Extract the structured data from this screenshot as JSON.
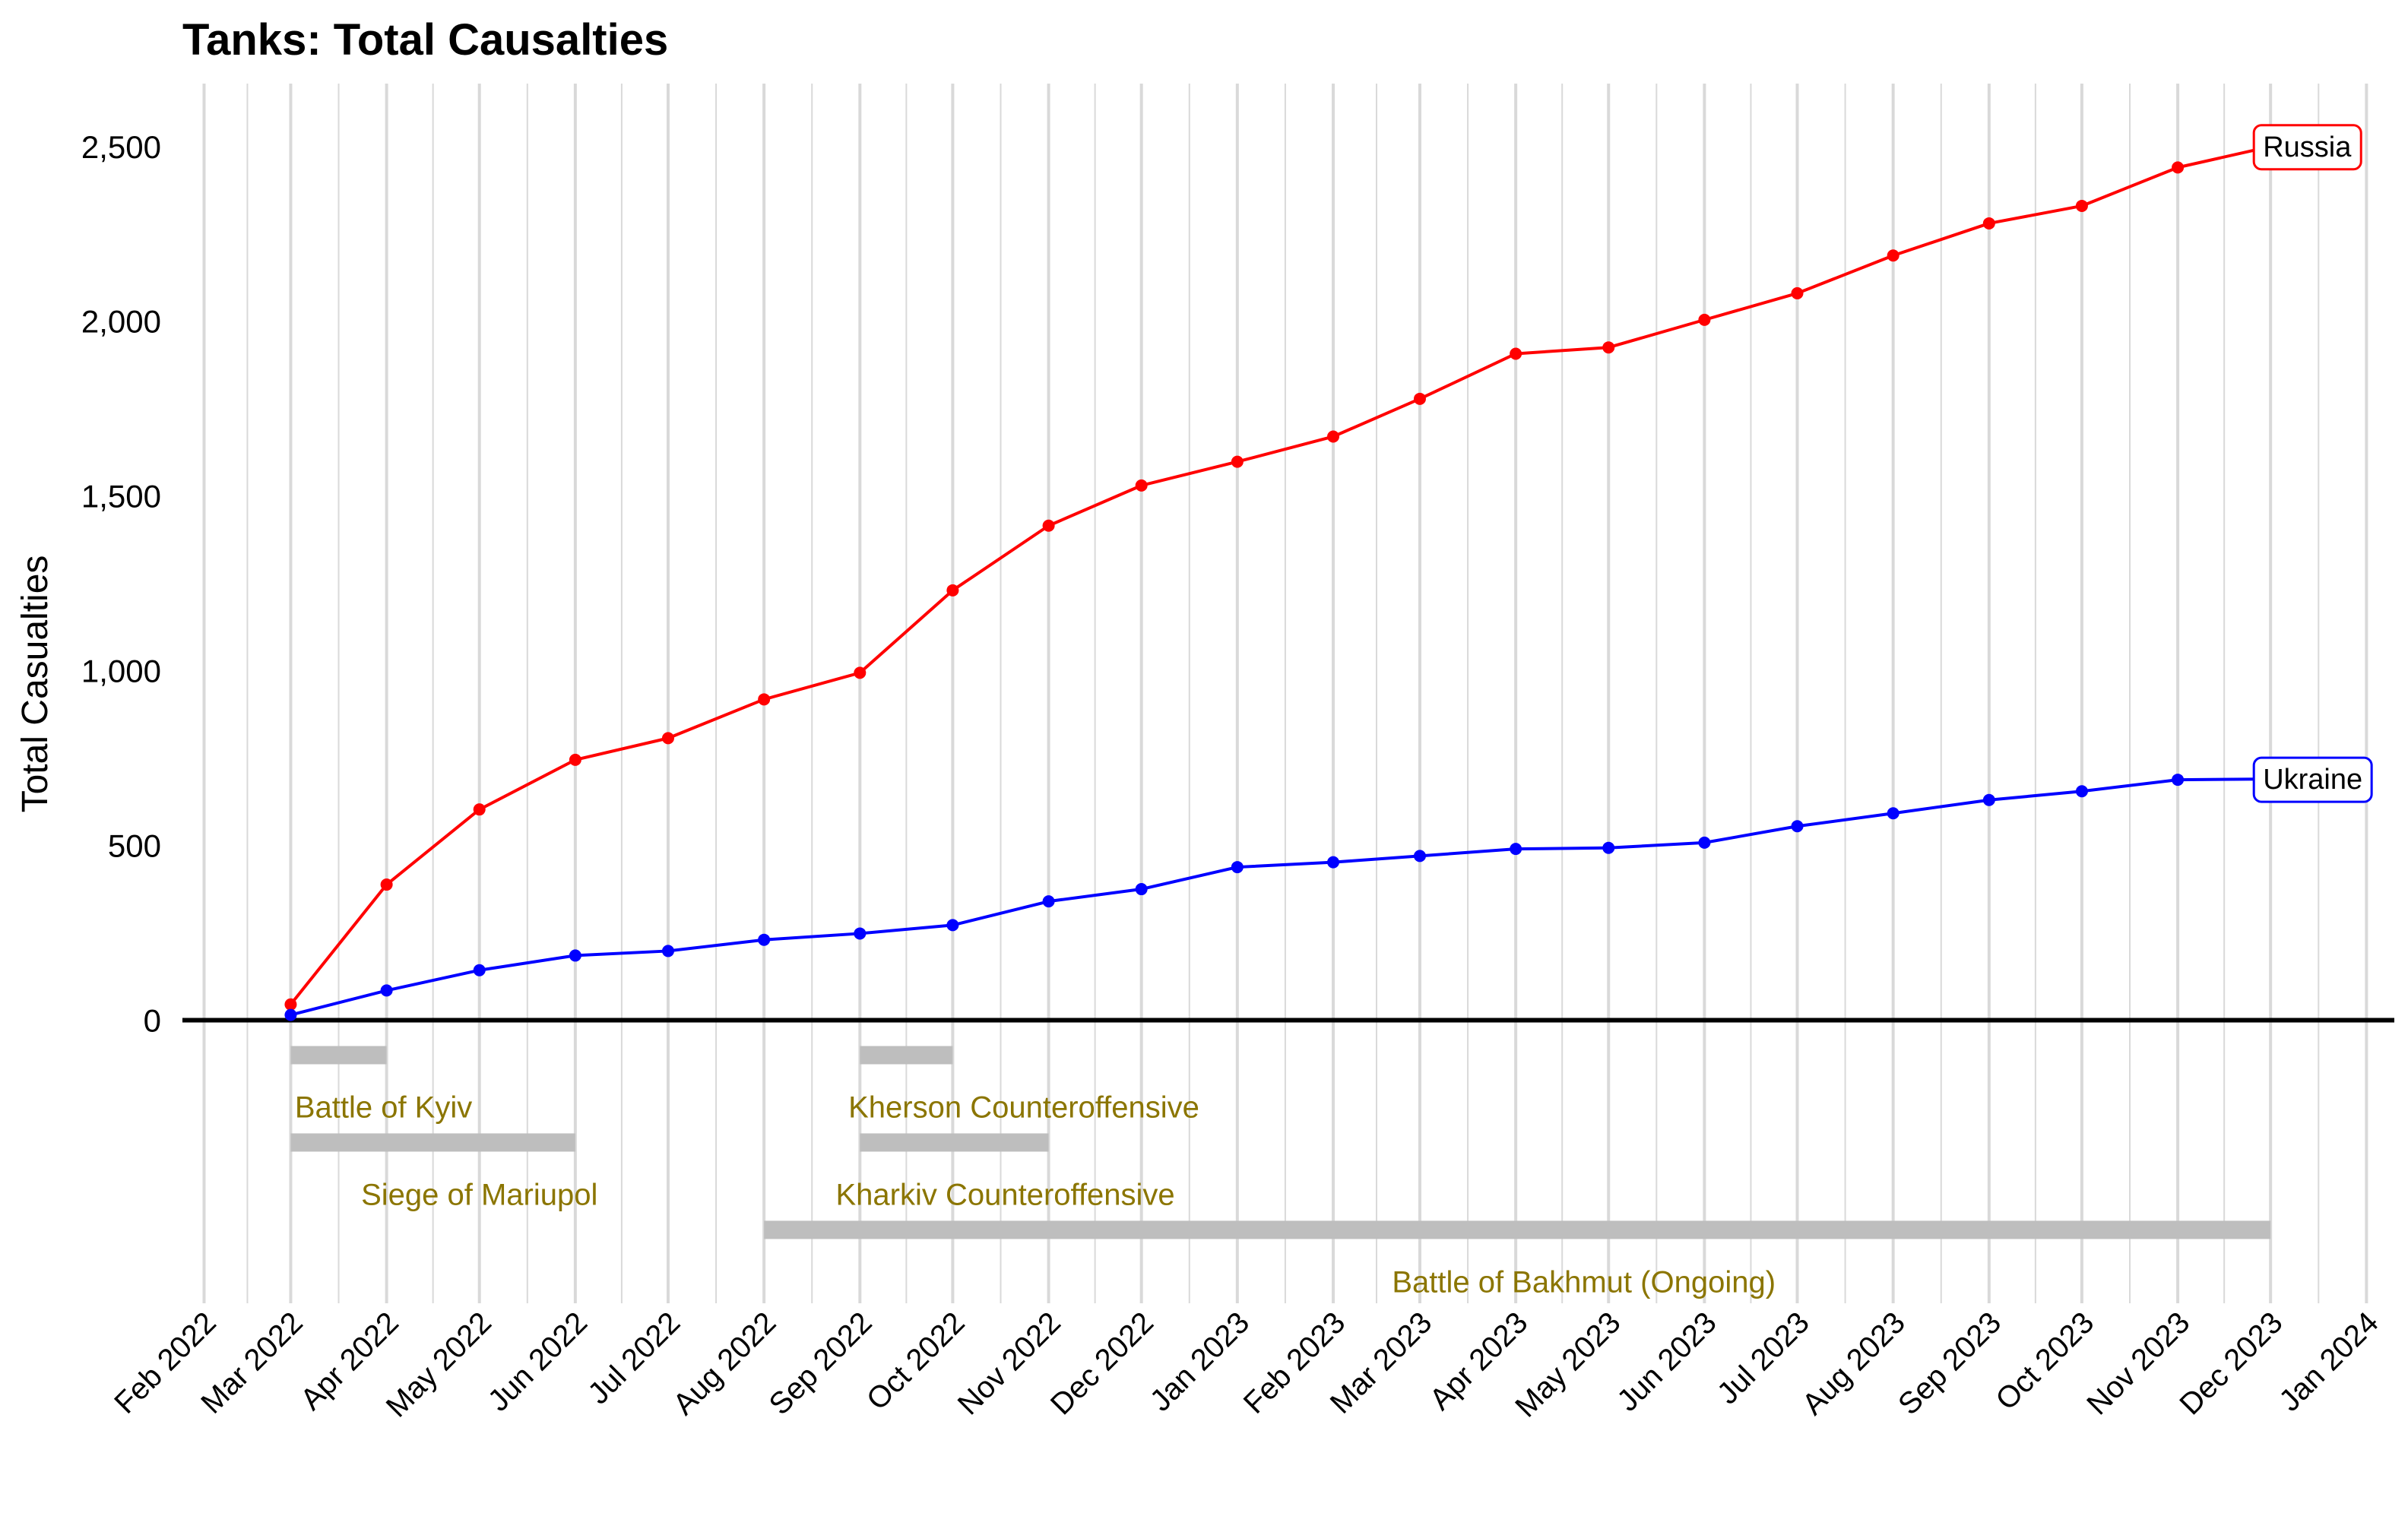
{
  "chart_data": {
    "type": "line",
    "title": "Tanks: Total Causalties",
    "xlabel": "",
    "ylabel": "Total Casualties",
    "x_ticks": [
      "Feb 2022",
      "Mar 2022",
      "Apr 2022",
      "May 2022",
      "Jun 2022",
      "Jul 2022",
      "Aug 2022",
      "Sep 2022",
      "Oct 2022",
      "Nov 2022",
      "Dec 2022",
      "Jan 2023",
      "Feb 2023",
      "Mar 2023",
      "Apr 2023",
      "May 2023",
      "Jun 2023",
      "Jul 2023",
      "Aug 2023",
      "Sep 2023",
      "Oct 2023",
      "Nov 2023",
      "Dec 2023",
      "Jan 2024"
    ],
    "y_ticks": [
      0,
      500,
      1000,
      1500,
      2000,
      2500
    ],
    "y_tick_labels": [
      "0",
      "500",
      "1,000",
      "1,500",
      "2,000",
      "2,500"
    ],
    "xlim": [
      "2022-01-25",
      "2024-01-10"
    ],
    "ylim": [
      -810,
      2680
    ],
    "grid": "vertical",
    "x": [
      "2022-03-01",
      "2022-04-01",
      "2022-05-01",
      "2022-06-01",
      "2022-07-01",
      "2022-08-01",
      "2022-09-01",
      "2022-10-01",
      "2022-11-01",
      "2022-12-01",
      "2023-01-01",
      "2023-02-01",
      "2023-03-01",
      "2023-04-01",
      "2023-05-01",
      "2023-06-01",
      "2023-07-01",
      "2023-08-01",
      "2023-09-01",
      "2023-10-01",
      "2023-11-01",
      "2023-12-01"
    ],
    "series": [
      {
        "name": "Russia",
        "color": "#ff0000",
        "values": [
          45,
          388,
          603,
          745,
          807,
          918,
          994,
          1230,
          1415,
          1530,
          1598,
          1670,
          1778,
          1907,
          1925,
          2004,
          2080,
          2188,
          2280,
          2330,
          2440,
          2500
        ]
      },
      {
        "name": "Ukraine",
        "color": "#0000ff",
        "values": [
          15,
          85,
          143,
          185,
          198,
          230,
          248,
          272,
          340,
          375,
          438,
          452,
          470,
          490,
          493,
          508,
          555,
          592,
          630,
          655,
          688,
          690
        ]
      }
    ],
    "events": [
      {
        "label": "Battle of Kyiv",
        "start": "2022-03-01",
        "end": "2022-04-01",
        "y": -100,
        "label_x": "2022-03-31"
      },
      {
        "label": "Siege of Mariupol",
        "start": "2022-03-01",
        "end": "2022-06-01",
        "y": -350,
        "label_x": "2022-05-01"
      },
      {
        "label": "Kherson Counteroffensive",
        "start": "2022-09-01",
        "end": "2022-10-01",
        "y": -100,
        "label_x": "2022-10-24"
      },
      {
        "label": "Kharkiv Counteroffensive",
        "start": "2022-09-01",
        "end": "2022-11-01",
        "y": -350,
        "label_x": "2022-10-18"
      },
      {
        "label": "Battle of Bakhmut (Ongoing)",
        "start": "2022-08-01",
        "end": "2023-12-01",
        "y": -600,
        "label_x": "2023-04-23"
      }
    ],
    "colors": {
      "event_bar": "#bebebe",
      "event_text": "#8b7500",
      "grid": "#d9d9d9",
      "baseline": "#000000"
    }
  }
}
